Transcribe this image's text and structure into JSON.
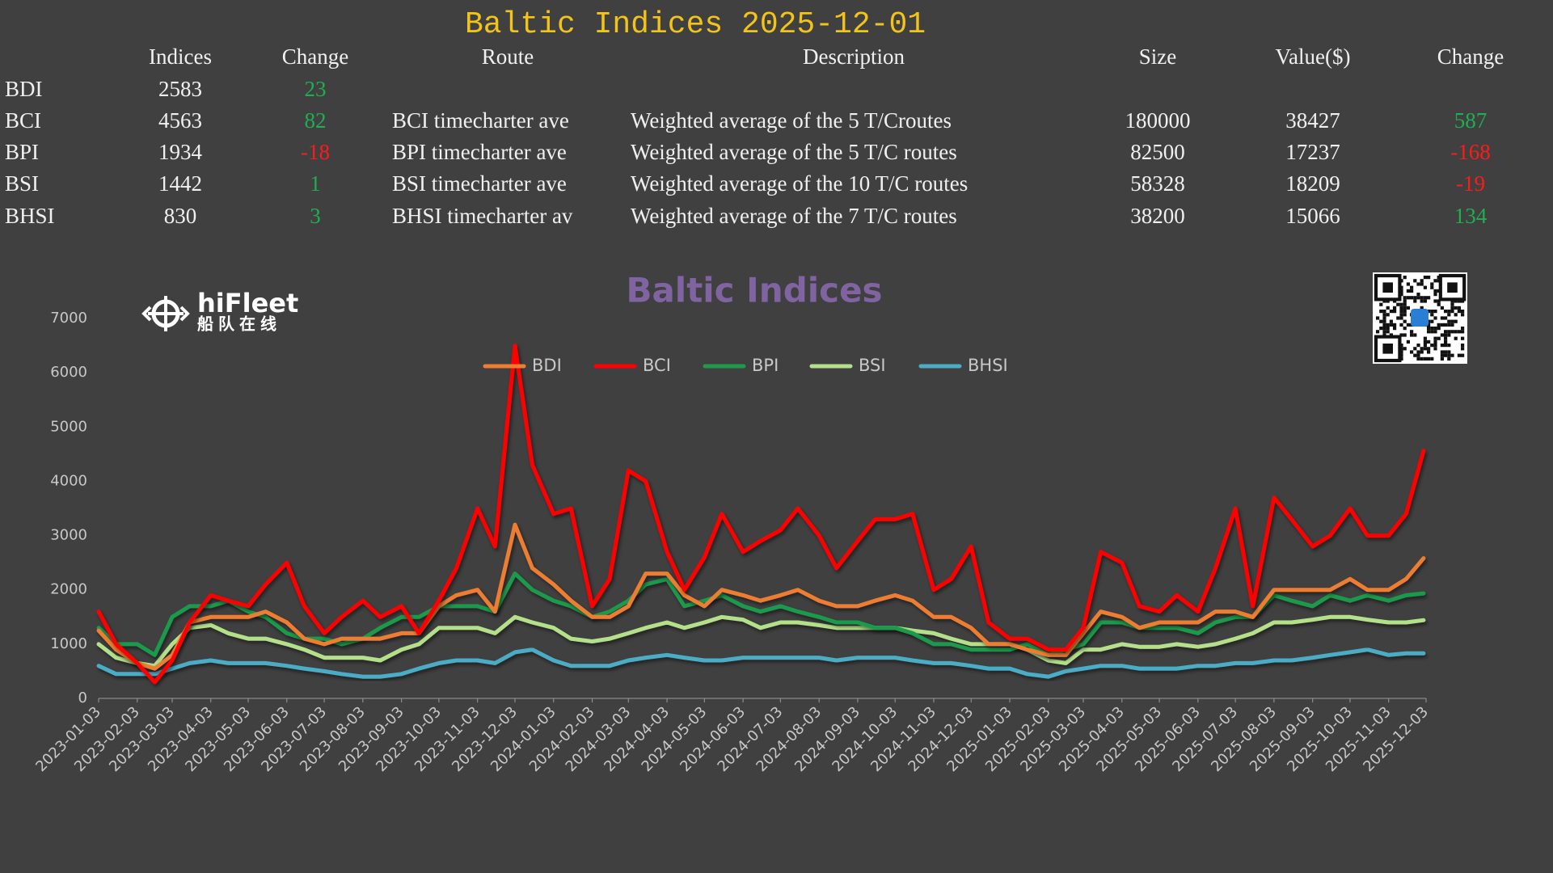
{
  "header": {
    "title": "Baltic Indices 2025-12-01"
  },
  "table": {
    "columns": [
      "Indices",
      "Change",
      "Route",
      "Description",
      "Size",
      "Value($)",
      "Change"
    ],
    "rows": [
      {
        "name": "BDI",
        "index": 2583,
        "change": 23
      },
      {
        "name": "BCI",
        "index": 4563,
        "change": 82,
        "route": "BCI timecharter ave",
        "description": "Weighted average of the 5 T/Croutes",
        "size": 180000,
        "value": 38427,
        "value_change": 587
      },
      {
        "name": "BPI",
        "index": 1934,
        "change": -18,
        "route": "BPI timecharter ave",
        "description": "Weighted average of the 5 T/C routes",
        "size": 82500,
        "value": 17237,
        "value_change": -168
      },
      {
        "name": "BSI",
        "index": 1442,
        "change": 1,
        "route": "BSI timecharter ave",
        "description": "Weighted average of the 10 T/C routes",
        "size": 58328,
        "value": 18209,
        "value_change": -19
      },
      {
        "name": "BHSI",
        "index": 830,
        "change": 3,
        "route": "BHSI timecharter av",
        "description": "Weighted average of the 7 T/C routes",
        "size": 38200,
        "value": 15066,
        "value_change": 134
      }
    ]
  },
  "logo": {
    "name": "hiFleet",
    "tagline": "船队在线"
  },
  "chart_data": {
    "type": "line",
    "title": "Baltic Indices",
    "x": [
      "2023-01-03",
      "2023-01-17",
      "2023-02-03",
      "2023-02-17",
      "2023-03-03",
      "2023-03-17",
      "2023-04-03",
      "2023-04-17",
      "2023-05-03",
      "2023-05-17",
      "2023-06-03",
      "2023-06-17",
      "2023-07-03",
      "2023-07-17",
      "2023-08-03",
      "2023-08-17",
      "2023-09-03",
      "2023-09-17",
      "2023-10-03",
      "2023-10-17",
      "2023-11-03",
      "2023-11-17",
      "2023-12-03",
      "2023-12-17",
      "2024-01-03",
      "2024-01-17",
      "2024-02-03",
      "2024-02-17",
      "2024-03-03",
      "2024-03-17",
      "2024-04-03",
      "2024-04-17",
      "2024-05-03",
      "2024-05-17",
      "2024-06-03",
      "2024-06-17",
      "2024-07-03",
      "2024-07-17",
      "2024-08-03",
      "2024-08-17",
      "2024-09-03",
      "2024-09-17",
      "2024-10-03",
      "2024-10-17",
      "2024-11-03",
      "2024-11-17",
      "2024-12-03",
      "2024-12-17",
      "2025-01-03",
      "2025-01-17",
      "2025-02-03",
      "2025-02-17",
      "2025-03-03",
      "2025-03-17",
      "2025-04-03",
      "2025-04-17",
      "2025-05-03",
      "2025-05-17",
      "2025-06-03",
      "2025-06-17",
      "2025-07-03",
      "2025-07-17",
      "2025-08-03",
      "2025-08-17",
      "2025-09-03",
      "2025-09-17",
      "2025-10-03",
      "2025-10-17",
      "2025-11-03",
      "2025-11-17",
      "2025-12-01"
    ],
    "series": [
      {
        "name": "BDI",
        "color": "#ed7d31",
        "values": [
          1250,
          900,
          650,
          550,
          800,
          1400,
          1500,
          1500,
          1500,
          1600,
          1400,
          1100,
          1000,
          1100,
          1100,
          1100,
          1200,
          1200,
          1700,
          1900,
          2000,
          1600,
          3200,
          2400,
          2100,
          1800,
          1500,
          1500,
          1700,
          2300,
          2300,
          1900,
          1700,
          2000,
          1900,
          1800,
          1900,
          2000,
          1800,
          1700,
          1700,
          1800,
          1900,
          1800,
          1500,
          1500,
          1300,
          1000,
          1000,
          900,
          800,
          800,
          1200,
          1600,
          1500,
          1300,
          1400,
          1400,
          1400,
          1600,
          1600,
          1500,
          2000,
          2000,
          2000,
          2000,
          2200,
          2000,
          2000,
          2200,
          2583
        ]
      },
      {
        "name": "BCI",
        "color": "#ff0000",
        "values": [
          1600,
          1000,
          650,
          300,
          700,
          1400,
          1900,
          1800,
          1700,
          2100,
          2500,
          1700,
          1200,
          1500,
          1800,
          1500,
          1700,
          1200,
          1800,
          2400,
          3500,
          2800,
          6500,
          4300,
          3400,
          3500,
          1700,
          2200,
          4200,
          4000,
          2700,
          2000,
          2600,
          3400,
          2700,
          2900,
          3100,
          3500,
          3000,
          2400,
          2900,
          3300,
          3300,
          3400,
          2000,
          2200,
          2800,
          1400,
          1100,
          1100,
          900,
          900,
          1300,
          2700,
          2500,
          1700,
          1600,
          1900,
          1600,
          2400,
          3500,
          1700,
          3700,
          3300,
          2800,
          3000,
          3500,
          3000,
          3000,
          3400,
          4563
        ]
      },
      {
        "name": "BPI",
        "color": "#1f9a4c",
        "values": [
          1300,
          1000,
          1000,
          800,
          1500,
          1700,
          1700,
          1800,
          1600,
          1500,
          1200,
          1100,
          1100,
          1000,
          1100,
          1300,
          1500,
          1500,
          1700,
          1700,
          1700,
          1600,
          2300,
          2000,
          1800,
          1700,
          1500,
          1600,
          1800,
          2100,
          2200,
          1700,
          1800,
          1900,
          1700,
          1600,
          1700,
          1600,
          1500,
          1400,
          1400,
          1300,
          1300,
          1200,
          1000,
          1000,
          900,
          900,
          900,
          1000,
          800,
          900,
          1000,
          1400,
          1400,
          1300,
          1300,
          1300,
          1200,
          1400,
          1500,
          1500,
          1900,
          1800,
          1700,
          1900,
          1800,
          1900,
          1800,
          1900,
          1934
        ]
      },
      {
        "name": "BSI",
        "color": "#b4e08a",
        "values": [
          1000,
          750,
          650,
          600,
          1000,
          1300,
          1350,
          1200,
          1100,
          1100,
          1000,
          900,
          750,
          750,
          750,
          700,
          900,
          1000,
          1300,
          1300,
          1300,
          1200,
          1500,
          1400,
          1300,
          1100,
          1050,
          1100,
          1200,
          1300,
          1400,
          1300,
          1400,
          1500,
          1450,
          1300,
          1400,
          1400,
          1350,
          1300,
          1300,
          1300,
          1300,
          1250,
          1200,
          1100,
          1000,
          1000,
          1000,
          900,
          700,
          650,
          900,
          900,
          1000,
          950,
          950,
          1000,
          950,
          1000,
          1100,
          1200,
          1400,
          1400,
          1450,
          1500,
          1500,
          1450,
          1400,
          1400,
          1442
        ]
      },
      {
        "name": "BHSI",
        "color": "#4bacc6",
        "values": [
          600,
          450,
          450,
          450,
          550,
          650,
          700,
          650,
          650,
          650,
          600,
          550,
          500,
          450,
          400,
          400,
          450,
          550,
          650,
          700,
          700,
          650,
          850,
          900,
          700,
          600,
          600,
          600,
          700,
          750,
          800,
          750,
          700,
          700,
          750,
          750,
          750,
          750,
          750,
          700,
          750,
          750,
          750,
          700,
          650,
          650,
          600,
          550,
          550,
          450,
          400,
          500,
          550,
          600,
          600,
          550,
          550,
          550,
          600,
          600,
          650,
          650,
          700,
          700,
          750,
          800,
          850,
          900,
          800,
          830,
          830
        ]
      }
    ],
    "xlim": [
      "2023-01-03",
      "2025-12-03"
    ],
    "xticks": [
      "2023-01-03",
      "2023-02-03",
      "2023-03-03",
      "2023-04-03",
      "2023-05-03",
      "2023-06-03",
      "2023-07-03",
      "2023-08-03",
      "2023-09-03",
      "2023-10-03",
      "2023-11-03",
      "2023-12-03",
      "2024-01-03",
      "2024-02-03",
      "2024-03-03",
      "2024-04-03",
      "2024-05-03",
      "2024-06-03",
      "2024-07-03",
      "2024-08-03",
      "2024-09-03",
      "2024-10-03",
      "2024-11-03",
      "2024-12-03",
      "2025-01-03",
      "2025-02-03",
      "2025-03-03",
      "2025-04-03",
      "2025-05-03",
      "2025-06-03",
      "2025-07-03",
      "2025-08-03",
      "2025-09-03",
      "2025-10-03",
      "2025-11-03",
      "2025-12-03"
    ],
    "ylim": [
      0,
      7000
    ],
    "yticks": [
      0,
      1000,
      2000,
      3000,
      4000,
      5000,
      6000,
      7000
    ],
    "grid": false,
    "legend": "top"
  }
}
